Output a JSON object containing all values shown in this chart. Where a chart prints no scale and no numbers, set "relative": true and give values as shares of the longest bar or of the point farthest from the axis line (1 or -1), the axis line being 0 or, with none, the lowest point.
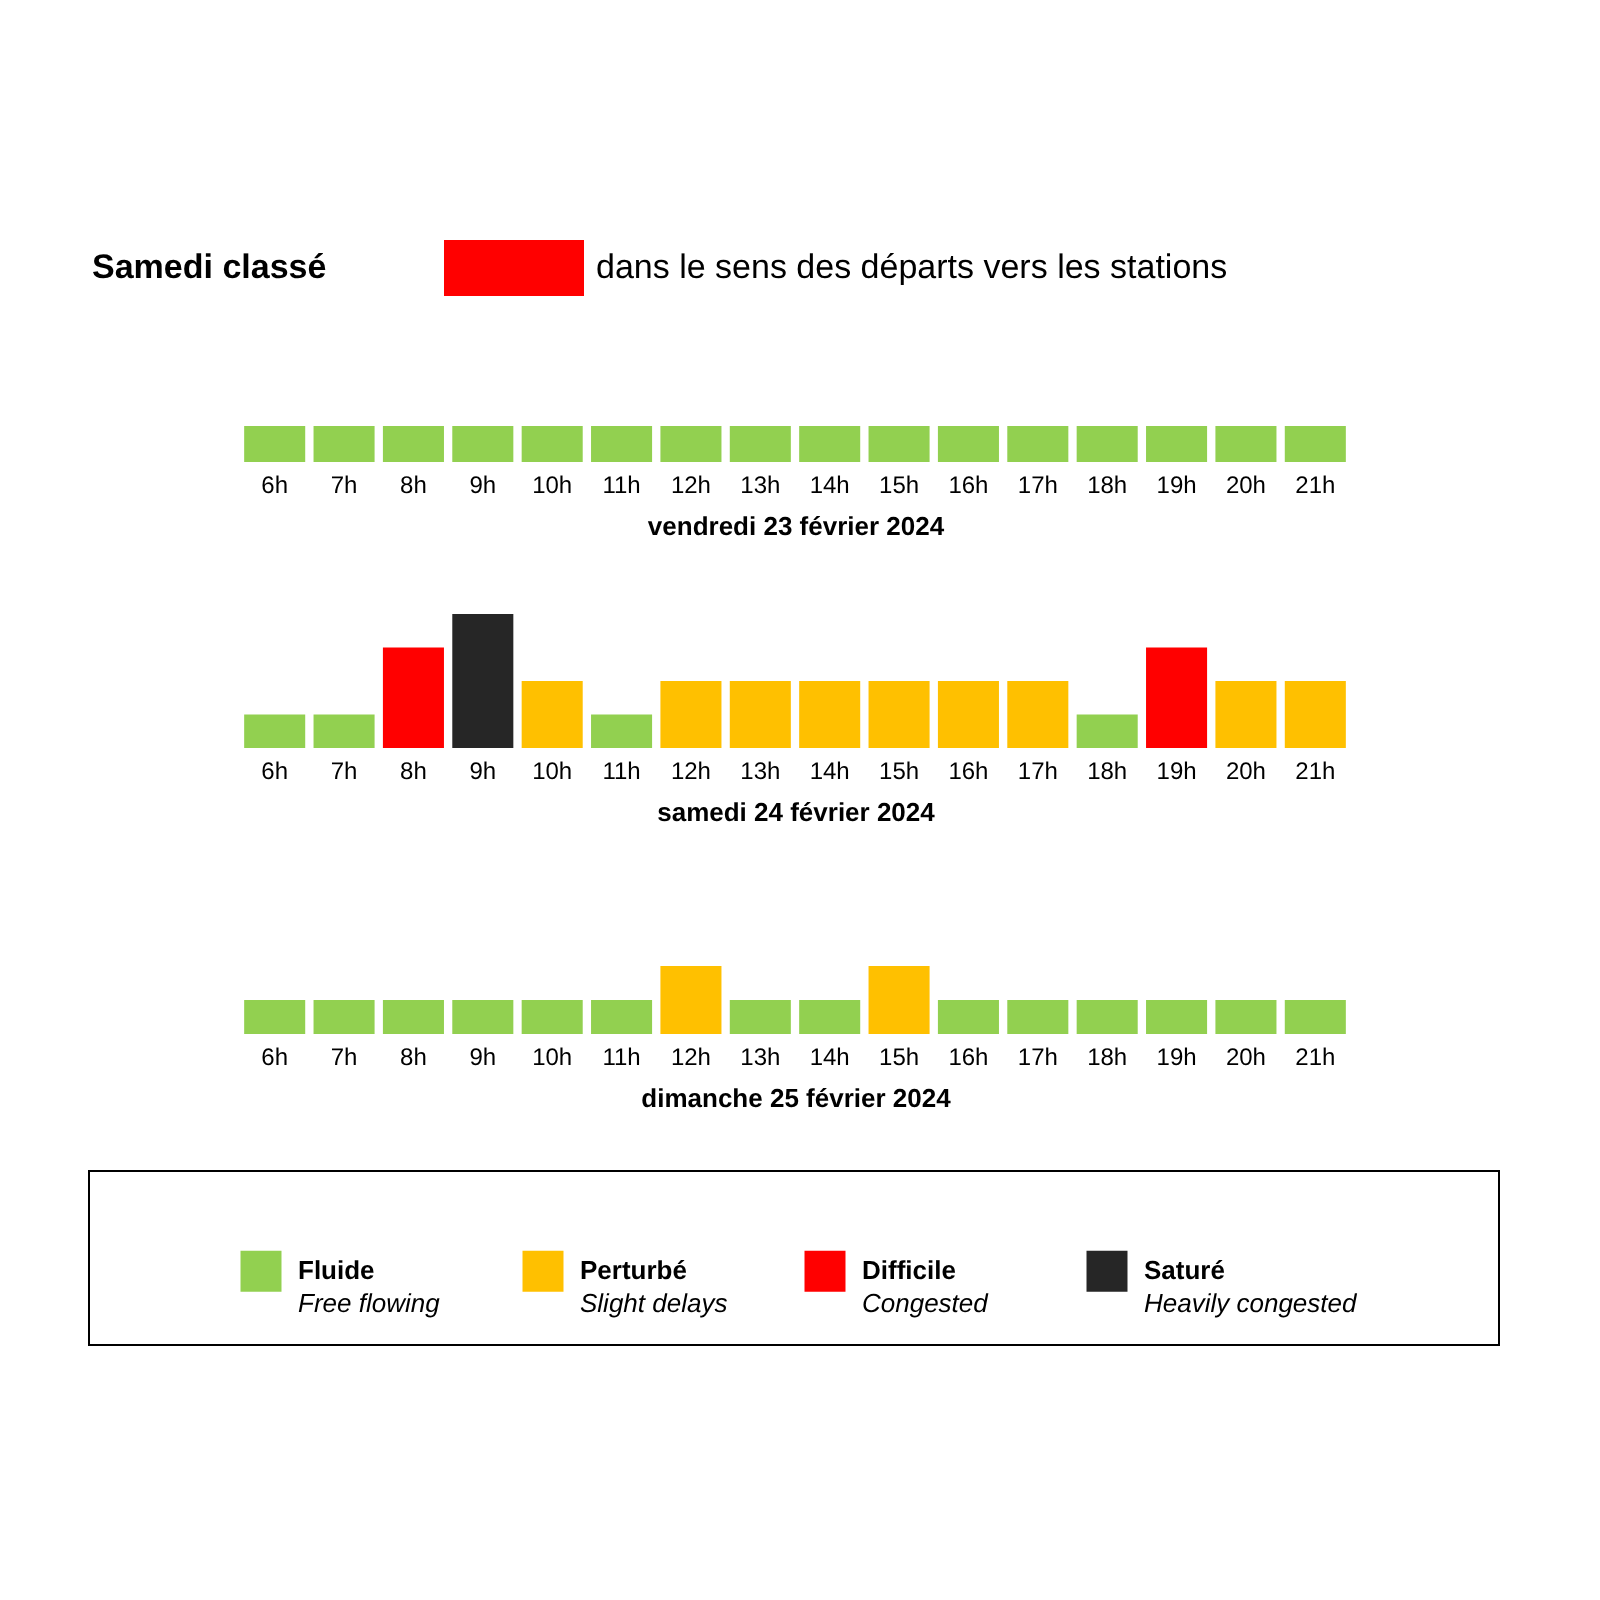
{
  "chart_data": [
    {
      "type": "bar",
      "title": "Samedi classé",
      "subtitle": "dans le sens des départs vers les stations",
      "xlabel": "vendredi 23 février 2024",
      "relative": true,
      "grid": false,
      "legend": false,
      "categories": [
        "6h",
        "7h",
        "8h",
        "9h",
        "10h",
        "11h",
        "12h",
        "13h",
        "14h",
        "15h",
        "16h",
        "17h",
        "18h",
        "19h",
        "20h",
        "21h"
      ],
      "series": [
        {
          "color": "#92d050",
          "values": [
            1,
            1,
            1,
            1,
            1,
            1,
            1,
            1,
            1,
            1,
            1,
            1,
            1,
            1,
            1,
            1
          ]
        }
      ]
    },
    {
      "type": "bar",
      "xlabel": "samedi 24 février 2024",
      "relative": true,
      "grid": false,
      "legend": "bottom",
      "categories": [
        "6h",
        "7h",
        "8h",
        "9h",
        "10h",
        "11h",
        "12h",
        "13h",
        "14h",
        "15h",
        "16h",
        "17h",
        "18h",
        "19h",
        "20h",
        "21h"
      ],
      "annotations": [
        "Free flowing",
        "Slight delays",
        "Congested",
        "Heavily congested"
      ],
      "series": [
        {
          "name": "Fluide",
          "color": "#92d050",
          "values": [
            0.25,
            0.25,
            null,
            null,
            null,
            0.25,
            null,
            null,
            null,
            null,
            null,
            null,
            0.25,
            null,
            null,
            null
          ]
        },
        {
          "name": "Perturbé",
          "color": "#ffc000",
          "values": [
            null,
            null,
            null,
            null,
            0.5,
            null,
            0.5,
            0.5,
            0.5,
            0.5,
            0.5,
            0.5,
            null,
            null,
            0.5,
            0.5
          ]
        },
        {
          "name": "Difficile",
          "color": "#ff0000",
          "values": [
            null,
            null,
            0.75,
            null,
            null,
            null,
            null,
            null,
            null,
            null,
            null,
            null,
            null,
            0.75,
            null,
            null
          ]
        },
        {
          "name": "Saturé",
          "color": "#262626",
          "values": [
            null,
            null,
            null,
            1,
            null,
            null,
            null,
            null,
            null,
            null,
            null,
            null,
            null,
            null,
            null,
            null
          ]
        }
      ]
    },
    {
      "type": "bar",
      "xlabel": "dimanche 25 février 2024",
      "relative": true,
      "grid": false,
      "legend": false,
      "categories": [
        "6h",
        "7h",
        "8h",
        "9h",
        "10h",
        "11h",
        "12h",
        "13h",
        "14h",
        "15h",
        "16h",
        "17h",
        "18h",
        "19h",
        "20h",
        "21h"
      ],
      "series": [
        {
          "color": "#92d050",
          "values": [
            0.5,
            0.5,
            0.5,
            0.5,
            0.5,
            0.5,
            null,
            0.5,
            0.5,
            null,
            0.5,
            0.5,
            0.5,
            0.5,
            0.5,
            0.5
          ]
        },
        {
          "color": "#ffc000",
          "values": [
            null,
            null,
            null,
            null,
            null,
            null,
            1,
            null,
            null,
            1,
            null,
            null,
            null,
            null,
            null,
            null
          ]
        }
      ]
    }
  ]
}
